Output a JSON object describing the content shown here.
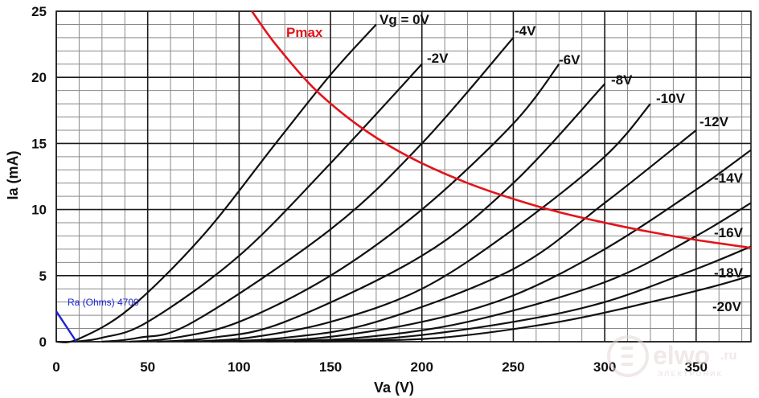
{
  "chart_data": {
    "type": "line",
    "xlabel": "Va (V)",
    "ylabel": "Ia (mA)",
    "xlim": [
      0,
      380
    ],
    "ylim": [
      0,
      25
    ],
    "x_ticks": [
      0,
      50,
      100,
      150,
      200,
      250,
      300,
      350
    ],
    "y_ticks": [
      0,
      5,
      10,
      15,
      20,
      25
    ],
    "grid": true,
    "series": [
      {
        "name": "Vg = 0V",
        "x": [
          0,
          12,
          40,
          80,
          120,
          150,
          175
        ],
        "y": [
          0,
          0.2,
          2.5,
          8,
          15,
          20.2,
          24
        ]
      },
      {
        "name": "-2V",
        "x": [
          10,
          25,
          50,
          100,
          150,
          200
        ],
        "y": [
          0,
          0.3,
          1.5,
          6.5,
          13.5,
          21
        ]
      },
      {
        "name": "-4V",
        "x": [
          25,
          45,
          75,
          150,
          200,
          250
        ],
        "y": [
          0,
          0.3,
          1.5,
          8.5,
          15,
          23
        ]
      },
      {
        "name": "-6V",
        "x": [
          40,
          65,
          100,
          150,
          200,
          250,
          275
        ],
        "y": [
          0,
          0.3,
          1.5,
          5,
          10,
          16.5,
          21
        ]
      },
      {
        "name": "-8V",
        "x": [
          55,
          85,
          125,
          200,
          250,
          300
        ],
        "y": [
          0,
          0.3,
          1.5,
          6.5,
          12,
          19.5
        ]
      },
      {
        "name": "-10V",
        "x": [
          70,
          105,
          150,
          200,
          250,
          300,
          325
        ],
        "y": [
          0,
          0.3,
          1.5,
          4,
          8.5,
          14,
          18
        ]
      },
      {
        "name": "-12V",
        "x": [
          85,
          125,
          175,
          250,
          300,
          350
        ],
        "y": [
          0,
          0.3,
          1.5,
          5.5,
          10.5,
          16
        ]
      },
      {
        "name": "-14V",
        "x": [
          100,
          145,
          200,
          250,
          300,
          350,
          380
        ],
        "y": [
          0,
          0.3,
          1.5,
          3.5,
          7,
          11.5,
          14.5
        ]
      },
      {
        "name": "-16V",
        "x": [
          115,
          165,
          225,
          300,
          350,
          380
        ],
        "y": [
          0,
          0.3,
          1.5,
          4.5,
          8,
          10.5
        ]
      },
      {
        "name": "-18V",
        "x": [
          130,
          185,
          250,
          300,
          350,
          380
        ],
        "y": [
          0,
          0.3,
          1.5,
          3,
          5.5,
          7.2
        ]
      },
      {
        "name": "-20V",
        "x": [
          145,
          210,
          275,
          325,
          360,
          380
        ],
        "y": [
          0,
          0.3,
          1.5,
          3,
          4.2,
          5
        ]
      }
    ],
    "pmax": {
      "name": "Pmax",
      "color": "#e3141b",
      "x": [
        107,
        120,
        140,
        160,
        180,
        200,
        225,
        250,
        275,
        300,
        325,
        350,
        380
      ],
      "y": [
        25,
        22.5,
        19.3,
        16.9,
        15,
        13.5,
        12,
        10.8,
        9.8,
        9,
        8.3,
        7.7,
        7.1
      ]
    },
    "load_line": {
      "name": "Ra (Ohms) 4700",
      "color": "#1d22d6",
      "x": [
        0,
        11
      ],
      "y": [
        2.3,
        0
      ]
    }
  },
  "watermark": {
    "brand": "elwo",
    "tld": ".ru",
    "tagline": "ЭЛЕКТРОНИК"
  }
}
